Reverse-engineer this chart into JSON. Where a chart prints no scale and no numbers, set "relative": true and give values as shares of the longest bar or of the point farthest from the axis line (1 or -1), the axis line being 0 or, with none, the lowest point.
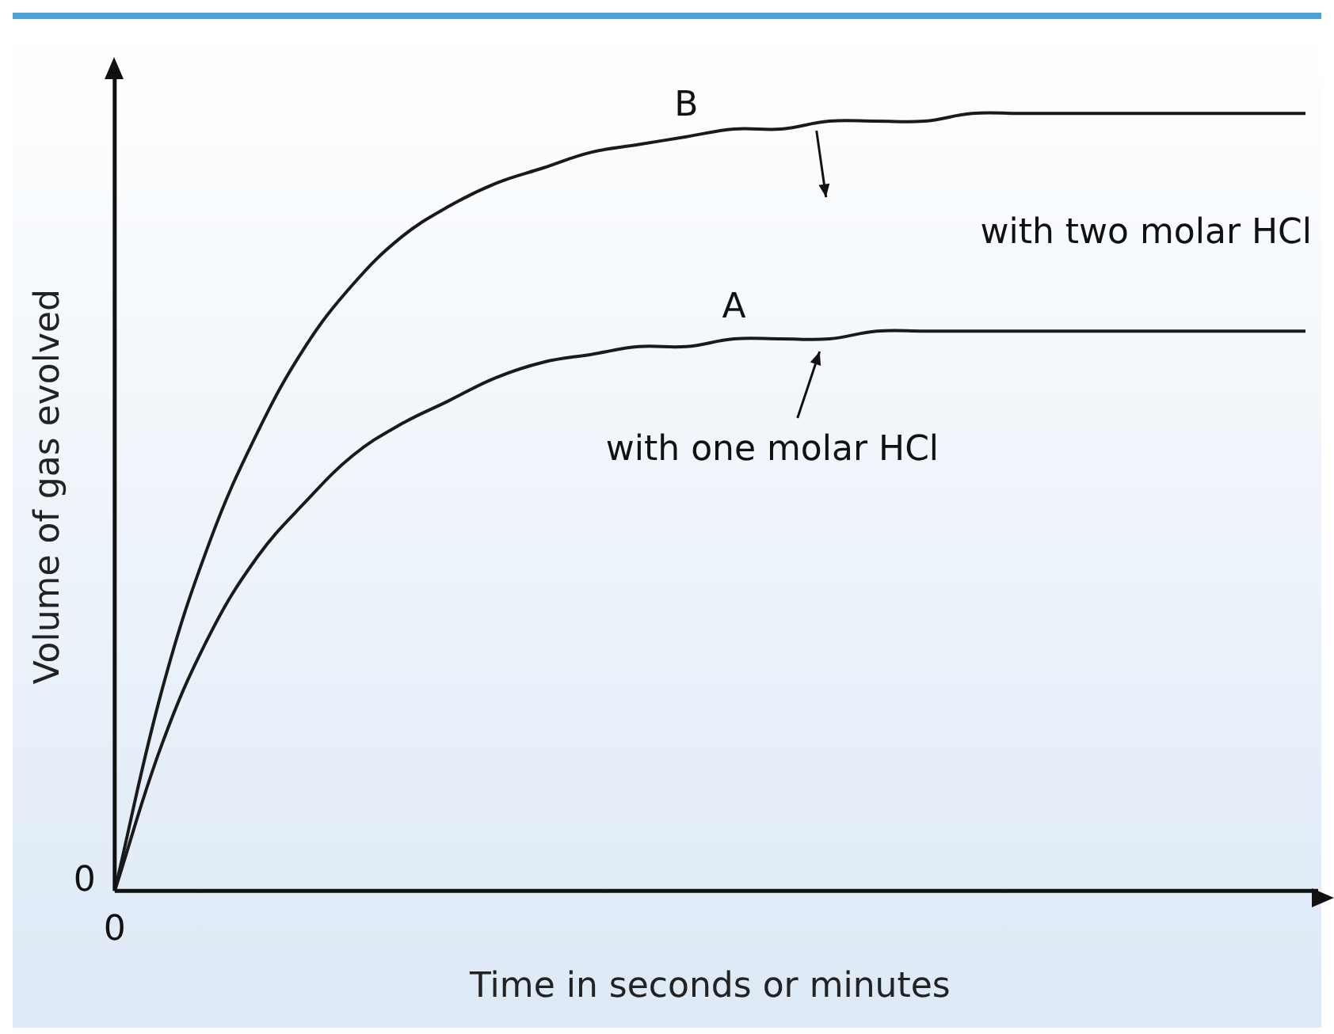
{
  "chart_data": {
    "type": "line",
    "relative": true,
    "xlabel": "Time in seconds or minutes",
    "ylabel": "Volume of gas evolved",
    "categories": [
      null,
      null,
      null,
      null,
      null,
      null,
      null,
      null,
      null,
      null,
      null,
      null,
      null,
      null,
      null,
      null,
      null,
      null,
      null,
      null,
      null,
      null,
      null,
      null,
      null,
      null
    ],
    "series": [
      {
        "name": "B",
        "color": "#1a1a1a",
        "values": [
          0,
          0.26,
          0.45,
          0.59,
          0.7,
          0.78,
          0.84,
          0.88,
          0.91,
          0.93,
          0.95,
          0.96,
          0.97,
          0.98,
          0.98,
          0.99,
          0.99,
          0.99,
          1,
          1,
          1,
          1,
          1,
          1,
          1,
          1
        ]
      },
      {
        "name": "A",
        "color": "#1a1a1a",
        "values": [
          0,
          0.19,
          0.33,
          0.43,
          0.5,
          0.56,
          0.6,
          0.63,
          0.66,
          0.68,
          0.69,
          0.7,
          0.7,
          0.71,
          0.71,
          0.71,
          0.72,
          0.72,
          0.72,
          0.72,
          0.72,
          0.72,
          0.72,
          0.72,
          0.72,
          0.72
        ]
      }
    ],
    "annotations": [
      "with two molar HCl",
      "with one molar HCl",
      "0",
      "0"
    ],
    "grid": false,
    "legend": false,
    "marker": "none",
    "line_style": "solid"
  }
}
